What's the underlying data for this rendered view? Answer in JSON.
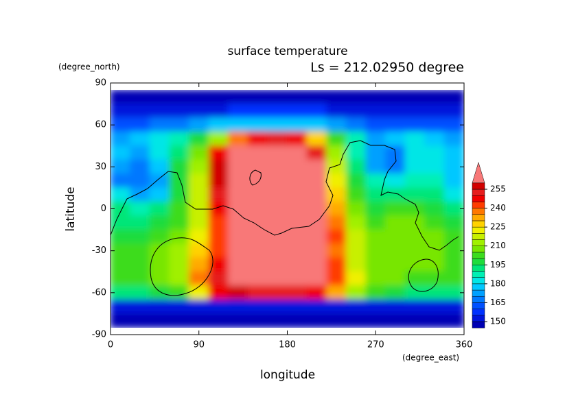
{
  "chart_data": {
    "type": "contour",
    "title": "surface temperature",
    "subtitle": "Ls = 212.02950 degree",
    "x_label": "longitude",
    "y_label": "latitude",
    "x_unit": "(degree_east)",
    "y_unit": "(degree_north)",
    "xlim": [
      0,
      360
    ],
    "ylim": [
      -90,
      90
    ],
    "xticks": [
      0,
      90,
      180,
      270,
      360
    ],
    "yticks": [
      -90,
      -60,
      -30,
      0,
      30,
      60,
      90
    ],
    "lon": [
      10,
      30,
      50,
      70,
      90,
      110,
      130,
      150,
      170,
      190,
      210,
      230,
      250,
      270,
      290,
      310,
      330,
      350
    ],
    "lat": [
      80,
      70,
      60,
      50,
      40,
      30,
      20,
      10,
      0,
      -10,
      -20,
      -30,
      -40,
      -50,
      -60,
      -70,
      -80
    ],
    "z": [
      [
        145,
        145,
        145,
        145,
        145,
        145,
        145,
        145,
        145,
        145,
        145,
        145,
        145,
        145,
        145,
        145,
        145,
        145
      ],
      [
        150,
        150,
        150,
        150,
        150,
        150,
        155,
        155,
        155,
        155,
        155,
        150,
        150,
        150,
        150,
        150,
        150,
        150
      ],
      [
        160,
        160,
        165,
        165,
        170,
        175,
        175,
        175,
        175,
        175,
        175,
        170,
        165,
        160,
        160,
        160,
        160,
        160
      ],
      [
        170,
        175,
        180,
        185,
        195,
        210,
        235,
        245,
        250,
        245,
        225,
        200,
        185,
        170,
        175,
        180,
        175,
        170
      ],
      [
        175,
        170,
        180,
        190,
        205,
        245,
        260,
        260,
        260,
        260,
        250,
        210,
        185,
        170,
        165,
        180,
        180,
        175
      ],
      [
        170,
        165,
        175,
        195,
        210,
        255,
        260,
        260,
        260,
        260,
        260,
        215,
        190,
        170,
        165,
        180,
        180,
        175
      ],
      [
        165,
        165,
        170,
        195,
        215,
        255,
        260,
        260,
        260,
        260,
        260,
        220,
        195,
        185,
        180,
        185,
        185,
        175
      ],
      [
        180,
        170,
        175,
        195,
        215,
        250,
        260,
        260,
        260,
        260,
        260,
        225,
        200,
        190,
        190,
        190,
        190,
        180
      ],
      [
        190,
        185,
        190,
        200,
        215,
        245,
        260,
        260,
        260,
        260,
        260,
        230,
        205,
        195,
        200,
        200,
        195,
        190
      ],
      [
        190,
        190,
        195,
        200,
        215,
        240,
        260,
        260,
        260,
        260,
        260,
        235,
        210,
        200,
        205,
        205,
        200,
        195
      ],
      [
        195,
        195,
        200,
        205,
        220,
        240,
        260,
        260,
        260,
        260,
        260,
        240,
        215,
        205,
        205,
        205,
        205,
        200
      ],
      [
        200,
        200,
        205,
        210,
        225,
        240,
        260,
        260,
        260,
        260,
        260,
        235,
        215,
        205,
        205,
        205,
        205,
        200
      ],
      [
        200,
        200,
        205,
        210,
        230,
        245,
        260,
        260,
        260,
        260,
        260,
        240,
        215,
        205,
        205,
        205,
        205,
        200
      ],
      [
        200,
        200,
        205,
        210,
        235,
        250,
        260,
        260,
        260,
        260,
        260,
        240,
        220,
        205,
        205,
        200,
        200,
        200
      ],
      [
        190,
        190,
        195,
        200,
        220,
        245,
        255,
        250,
        250,
        250,
        245,
        230,
        210,
        200,
        195,
        190,
        190,
        190
      ],
      [
        150,
        150,
        150,
        150,
        150,
        150,
        150,
        150,
        150,
        150,
        150,
        150,
        150,
        150,
        150,
        150,
        150,
        150
      ],
      [
        145,
        145,
        145,
        145,
        145,
        145,
        145,
        145,
        145,
        145,
        145,
        145,
        145,
        145,
        145,
        145,
        145,
        145
      ]
    ],
    "colorbar": {
      "levels": [
        145,
        150,
        155,
        160,
        165,
        170,
        175,
        180,
        185,
        190,
        195,
        200,
        205,
        210,
        215,
        220,
        225,
        230,
        235,
        240,
        245,
        250,
        255
      ],
      "colors": [
        "#0000b4",
        "#0014dc",
        "#0032ff",
        "#0050ff",
        "#0078ff",
        "#00a0ff",
        "#00c8ff",
        "#00e6e6",
        "#00f0b4",
        "#00e678",
        "#1edc3c",
        "#3cdc1e",
        "#78e600",
        "#a0f000",
        "#c8f000",
        "#f0f000",
        "#ffd200",
        "#ffaa00",
        "#ff7800",
        "#ff3c00",
        "#f00000",
        "#e61e1e",
        "#d20000"
      ],
      "over_color": "#f87878",
      "ticks": [
        150,
        165,
        180,
        195,
        210,
        225,
        240,
        255
      ]
    }
  }
}
